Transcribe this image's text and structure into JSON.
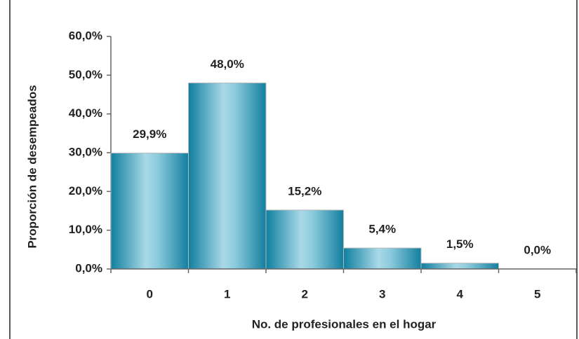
{
  "chart_data": {
    "type": "bar",
    "x_label": "No. de profesionales en el hogar",
    "y_label": "Proporción de desempeados",
    "categories": [
      "0",
      "1",
      "2",
      "3",
      "4",
      "5"
    ],
    "values": [
      29.9,
      48.0,
      15.2,
      5.4,
      1.5,
      0.0
    ],
    "value_labels": [
      "29,9%",
      "48,0%",
      "15,2%",
      "5,4%",
      "1,5%",
      "0,0%"
    ],
    "color": "#1b93b5",
    "ylim": [
      0,
      60
    ],
    "yticks": [
      {
        "value": 0,
        "label": "0,0%"
      },
      {
        "value": 10,
        "label": "10,0%"
      },
      {
        "value": 20,
        "label": "20,0%"
      },
      {
        "value": 30,
        "label": "30,0%"
      },
      {
        "value": 40,
        "label": "40,0%"
      },
      {
        "value": 50,
        "label": "50,0%"
      },
      {
        "value": 60,
        "label": "60,0%"
      }
    ],
    "grid": false
  }
}
